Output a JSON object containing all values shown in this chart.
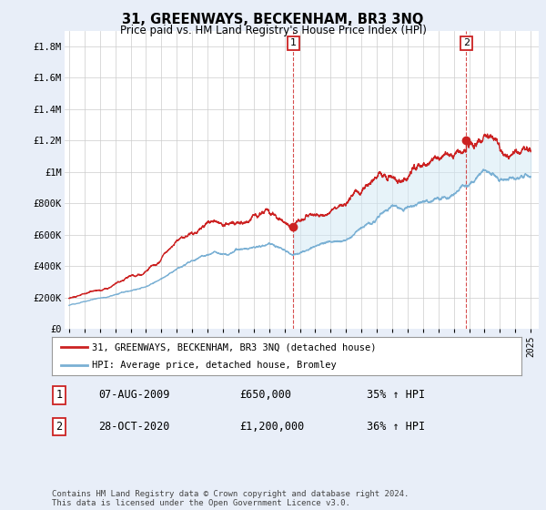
{
  "title": "31, GREENWAYS, BECKENHAM, BR3 3NQ",
  "subtitle": "Price paid vs. HM Land Registry's House Price Index (HPI)",
  "ylim": [
    0,
    1900000
  ],
  "yticks": [
    0,
    200000,
    400000,
    600000,
    800000,
    1000000,
    1200000,
    1400000,
    1600000,
    1800000
  ],
  "ytick_labels": [
    "£0",
    "£200K",
    "£400K",
    "£600K",
    "£800K",
    "£1M",
    "£1.2M",
    "£1.4M",
    "£1.6M",
    "£1.8M"
  ],
  "sale1_year": 2009.58,
  "sale1_price": 650000,
  "sale2_year": 2020.82,
  "sale2_price": 1200000,
  "hpi_color": "#7ab0d4",
  "price_color": "#cc2222",
  "fill_color": "#d0e8f5",
  "fill_alpha": 0.5,
  "legend_label_price": "31, GREENWAYS, BECKENHAM, BR3 3NQ (detached house)",
  "legend_label_hpi": "HPI: Average price, detached house, Bromley",
  "annotation1_date": "07-AUG-2009",
  "annotation1_price": "£650,000",
  "annotation1_hpi": "35% ↑ HPI",
  "annotation2_date": "28-OCT-2020",
  "annotation2_price": "£1,200,000",
  "annotation2_hpi": "36% ↑ HPI",
  "footer": "Contains HM Land Registry data © Crown copyright and database right 2024.\nThis data is licensed under the Open Government Licence v3.0.",
  "bg_color": "#e8eef8",
  "plot_bg": "#ffffff"
}
